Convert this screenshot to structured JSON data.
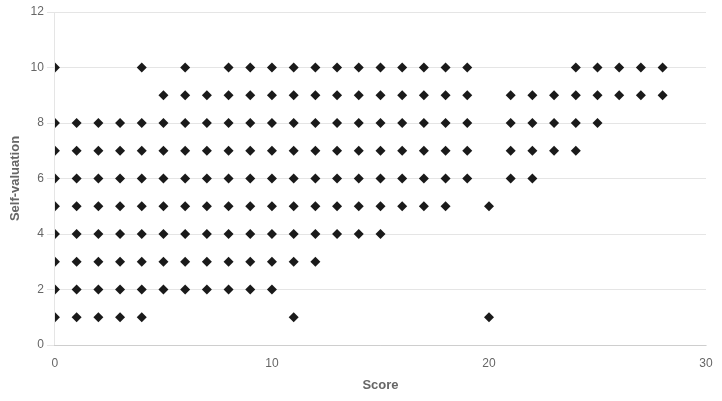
{
  "chart_data": {
    "type": "scatter",
    "xlabel": "Score",
    "ylabel": "Self-valuation",
    "xlim": [
      0,
      30
    ],
    "ylim": [
      0,
      12
    ],
    "xticks": [
      0,
      10,
      20,
      30
    ],
    "yticks": [
      0,
      2,
      4,
      6,
      8,
      10,
      12
    ],
    "grid": "y",
    "color": "#1a1a1a",
    "marker": "diamond",
    "x": [
      0,
      0,
      0,
      0,
      0,
      0,
      0,
      0,
      0,
      1,
      1,
      1,
      1,
      1,
      1,
      1,
      1,
      2,
      2,
      2,
      2,
      2,
      2,
      2,
      2,
      3,
      3,
      3,
      3,
      3,
      3,
      3,
      3,
      4,
      4,
      4,
      4,
      4,
      4,
      4,
      4,
      4,
      5,
      5,
      5,
      5,
      5,
      5,
      5,
      5,
      6,
      6,
      6,
      6,
      6,
      6,
      6,
      6,
      6,
      7,
      7,
      7,
      7,
      7,
      7,
      7,
      7,
      8,
      8,
      8,
      8,
      8,
      8,
      8,
      8,
      8,
      9,
      9,
      9,
      9,
      9,
      9,
      9,
      9,
      9,
      10,
      10,
      10,
      10,
      10,
      10,
      10,
      10,
      10,
      11,
      11,
      11,
      11,
      11,
      11,
      11,
      11,
      11,
      12,
      12,
      12,
      12,
      12,
      12,
      12,
      12,
      13,
      13,
      13,
      13,
      13,
      13,
      13,
      14,
      14,
      14,
      14,
      14,
      14,
      14,
      15,
      15,
      15,
      15,
      15,
      15,
      15,
      16,
      16,
      16,
      16,
      16,
      16,
      17,
      17,
      17,
      17,
      17,
      17,
      18,
      18,
      18,
      18,
      18,
      18,
      19,
      19,
      19,
      19,
      19,
      20,
      20,
      21,
      21,
      21,
      21,
      22,
      22,
      22,
      22,
      23,
      23,
      23,
      24,
      24,
      24,
      24,
      25,
      25,
      25,
      26,
      26,
      27,
      27,
      28,
      28
    ],
    "values": [
      1,
      2,
      3,
      4,
      5,
      6,
      7,
      8,
      10,
      1,
      2,
      3,
      4,
      5,
      6,
      7,
      8,
      1,
      2,
      3,
      4,
      5,
      6,
      7,
      8,
      1,
      2,
      3,
      4,
      5,
      6,
      7,
      8,
      1,
      2,
      3,
      4,
      5,
      6,
      7,
      8,
      10,
      2,
      3,
      4,
      5,
      6,
      7,
      8,
      9,
      2,
      3,
      4,
      5,
      6,
      7,
      8,
      9,
      10,
      2,
      3,
      4,
      5,
      6,
      7,
      8,
      9,
      2,
      3,
      4,
      5,
      6,
      7,
      8,
      9,
      10,
      2,
      3,
      4,
      5,
      6,
      7,
      8,
      9,
      10,
      2,
      3,
      4,
      5,
      6,
      7,
      8,
      9,
      10,
      1,
      3,
      4,
      5,
      6,
      7,
      8,
      9,
      10,
      3,
      4,
      5,
      6,
      7,
      8,
      9,
      10,
      4,
      5,
      6,
      7,
      8,
      9,
      10,
      4,
      5,
      6,
      7,
      8,
      9,
      10,
      4,
      5,
      6,
      7,
      8,
      9,
      10,
      5,
      6,
      7,
      8,
      9,
      10,
      5,
      6,
      7,
      8,
      9,
      10,
      5,
      6,
      7,
      8,
      9,
      10,
      6,
      7,
      8,
      9,
      10,
      1,
      5,
      6,
      7,
      8,
      9,
      6,
      7,
      8,
      9,
      7,
      8,
      9,
      7,
      8,
      9,
      10,
      8,
      9,
      10,
      9,
      10,
      9,
      10,
      9,
      10
    ]
  }
}
